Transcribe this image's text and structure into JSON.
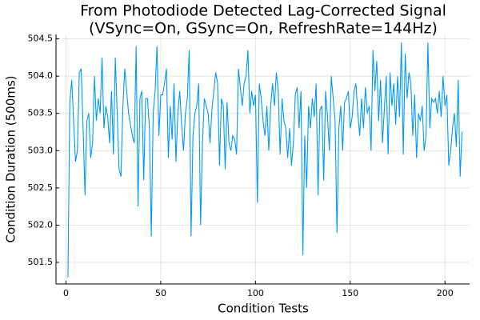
{
  "chart_data": {
    "type": "line",
    "title": [
      "From Photodiode Detected Lag-Corrected Signal",
      "(VSync=On, GSync=On, RefreshRate=144Hz)"
    ],
    "xlabel": "Condition Tests",
    "ylabel": "Condition Duration (500ms)",
    "xlim": [
      -5.3,
      213
    ],
    "ylim": [
      501.21,
      504.56
    ],
    "xticks": [
      0,
      50,
      100,
      150,
      200
    ],
    "yticks": [
      {
        "value": 501.5,
        "label": "501.5"
      },
      {
        "value": 502,
        "label": "502.0"
      },
      {
        "value": 502.5,
        "label": "502.5"
      },
      {
        "value": 503,
        "label": "503.0"
      },
      {
        "value": 503.5,
        "label": "503.5"
      },
      {
        "value": 504,
        "label": "504.0"
      },
      {
        "value": 504.5,
        "label": "504.5"
      }
    ],
    "grid": true,
    "x": [
      1,
      2,
      3,
      4,
      5,
      6,
      7,
      8,
      9,
      10,
      11,
      12,
      13,
      14,
      15,
      16,
      17,
      18,
      19,
      20,
      21,
      22,
      23,
      24,
      25,
      26,
      27,
      28,
      29,
      30,
      31,
      32,
      33,
      34,
      35,
      36,
      37,
      38,
      39,
      40,
      41,
      42,
      43,
      44,
      45,
      46,
      47,
      48,
      49,
      50,
      51,
      52,
      53,
      54,
      55,
      56,
      57,
      58,
      59,
      60,
      61,
      62,
      63,
      64,
      65,
      66,
      67,
      68,
      69,
      70,
      71,
      72,
      73,
      74,
      75,
      76,
      77,
      78,
      79,
      80,
      81,
      82,
      83,
      84,
      85,
      86,
      87,
      88,
      89,
      90,
      91,
      92,
      93,
      94,
      95,
      96,
      97,
      98,
      99,
      100,
      101,
      102,
      103,
      104,
      105,
      106,
      107,
      108,
      109,
      110,
      111,
      112,
      113,
      114,
      115,
      116,
      117,
      118,
      119,
      120,
      121,
      122,
      123,
      124,
      125,
      126,
      127,
      128,
      129,
      130,
      131,
      132,
      133,
      134,
      135,
      136,
      137,
      138,
      139,
      140,
      141,
      142,
      143,
      144,
      145,
      146,
      147,
      148,
      149,
      150,
      151,
      152,
      153,
      154,
      155,
      156,
      157,
      158,
      159,
      160,
      161,
      162,
      163,
      164,
      165,
      166,
      167,
      168,
      169,
      170,
      171,
      172,
      173,
      174,
      175,
      176,
      177,
      178,
      179,
      180,
      181,
      182,
      183,
      184,
      185,
      186,
      187,
      188,
      189,
      190,
      191,
      192,
      193,
      194,
      195,
      196,
      197,
      198,
      199,
      200,
      201,
      202,
      203,
      204,
      205,
      206,
      207,
      208,
      209
    ],
    "series": [
      {
        "color": "#009af9",
        "values": [
          501.3,
          503.65,
          503.95,
          503.4,
          502.85,
          503.0,
          504.05,
          504.1,
          503.3,
          502.4,
          503.4,
          503.5,
          502.9,
          503.1,
          504.0,
          503.4,
          503.7,
          503.5,
          504.25,
          503.3,
          503.6,
          503.45,
          503.1,
          503.8,
          502.95,
          504.25,
          503.5,
          502.75,
          502.65,
          503.6,
          504.1,
          503.8,
          503.5,
          503.35,
          503.2,
          503.1,
          504.4,
          502.25,
          503.7,
          503.8,
          502.6,
          503.7,
          503.7,
          503.3,
          501.85,
          503.5,
          503.8,
          504.4,
          503.2,
          503.75,
          503.75,
          503.9,
          504.1,
          502.9,
          503.6,
          503.15,
          503.9,
          502.85,
          503.5,
          503.8,
          503.35,
          503.0,
          503.5,
          503.7,
          504.35,
          501.85,
          503.2,
          503.5,
          503.6,
          503.9,
          502.0,
          503.1,
          503.7,
          503.6,
          503.5,
          503.1,
          503.55,
          503.8,
          504.05,
          503.9,
          502.8,
          503.7,
          503.6,
          502.75,
          503.65,
          503.1,
          503.0,
          503.2,
          503.15,
          502.95,
          504.1,
          503.85,
          503.6,
          503.9,
          504.0,
          504.35,
          503.5,
          503.8,
          503.6,
          503.75,
          502.3,
          503.9,
          503.7,
          503.4,
          503.2,
          503.6,
          503.0,
          503.6,
          503.9,
          503.6,
          504.05,
          503.8,
          502.95,
          503.7,
          503.4,
          503.3,
          502.9,
          503.3,
          502.8,
          503.1,
          503.75,
          503.85,
          503.3,
          503.8,
          501.6,
          503.2,
          502.5,
          503.6,
          503.3,
          503.7,
          503.45,
          503.9,
          502.4,
          503.55,
          503.6,
          502.6,
          503.8,
          503.45,
          503.0,
          504.0,
          503.7,
          503.4,
          501.9,
          503.3,
          503.6,
          503.0,
          503.65,
          503.7,
          503.8,
          503.3,
          503.45,
          503.8,
          503.9,
          503.5,
          503.2,
          503.7,
          503.3,
          503.85,
          503.5,
          503.6,
          503.0,
          504.35,
          503.8,
          504.2,
          503.4,
          503.95,
          503.1,
          503.55,
          504.0,
          502.95,
          504.05,
          503.6,
          503.9,
          503.35,
          504.0,
          503.45,
          504.45,
          502.95,
          504.3,
          503.7,
          504.05,
          503.9,
          503.2,
          503.75,
          502.9,
          503.5,
          503.4,
          503.6,
          503.0,
          503.2,
          504.45,
          503.3,
          503.7,
          503.65,
          503.7,
          503.5,
          503.8,
          503.45,
          504.0,
          503.6,
          503.75,
          502.8,
          503.0,
          503.3,
          503.5,
          503.05,
          503.95,
          502.65,
          503.25
        ]
      }
    ]
  }
}
